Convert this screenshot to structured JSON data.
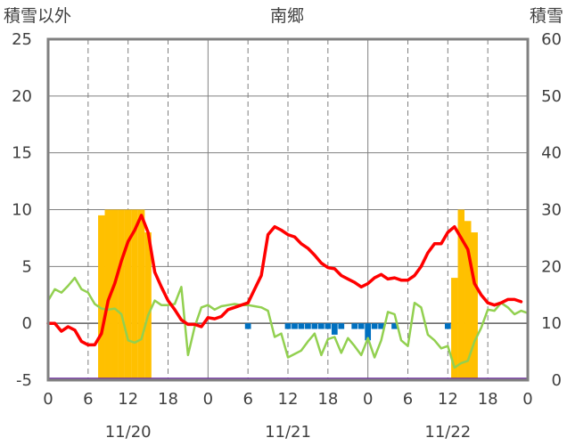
{
  "chart_data": {
    "type": "combo-bar-line",
    "title": "南郷",
    "left_axis_label": "積雪以外",
    "right_axis_label": "積雪",
    "left_ylim": [
      -5,
      25
    ],
    "left_ticks": [
      "-5",
      "0",
      "5",
      "10",
      "15",
      "20",
      "25"
    ],
    "right_ylim": [
      0,
      60
    ],
    "right_ticks": [
      "0",
      "10",
      "20",
      "30",
      "40",
      "50",
      "60"
    ],
    "x_hour_labels": [
      "0",
      "6",
      "12",
      "18",
      "0",
      "6",
      "12",
      "18",
      "0",
      "6",
      "12",
      "18",
      "0"
    ],
    "date_labels": [
      "11/20",
      "11/21",
      "11/22"
    ],
    "x_range_hours": [
      0,
      72
    ],
    "colors": {
      "snow_bar": "#ffc000",
      "precip_bar": "#0070c0",
      "red_line": "#ff0000",
      "green_line": "#92d050",
      "purple_line": "#7030a0",
      "axis": "#808080",
      "grid": "#808080"
    },
    "snow_bars": [
      {
        "hour": 8,
        "value": 29
      },
      {
        "hour": 9,
        "value": 30
      },
      {
        "hour": 10,
        "value": 30
      },
      {
        "hour": 11,
        "value": 30
      },
      {
        "hour": 12,
        "value": 30
      },
      {
        "hour": 13,
        "value": 30
      },
      {
        "hour": 14,
        "value": 30
      },
      {
        "hour": 15,
        "value": 26
      },
      {
        "hour": 61,
        "value": 18
      },
      {
        "hour": 62,
        "value": 30
      },
      {
        "hour": 63,
        "value": 28
      },
      {
        "hour": 64,
        "value": 26
      }
    ],
    "precip_bars": [
      {
        "hour": 30,
        "value": -0.5
      },
      {
        "hour": 36,
        "value": -0.5
      },
      {
        "hour": 37,
        "value": -0.5
      },
      {
        "hour": 38,
        "value": -0.5
      },
      {
        "hour": 39,
        "value": -0.5
      },
      {
        "hour": 40,
        "value": -0.5
      },
      {
        "hour": 41,
        "value": -0.5
      },
      {
        "hour": 42,
        "value": -0.5
      },
      {
        "hour": 43,
        "value": -1.0
      },
      {
        "hour": 44,
        "value": -0.5
      },
      {
        "hour": 46,
        "value": -0.5
      },
      {
        "hour": 47,
        "value": -0.5
      },
      {
        "hour": 48,
        "value": -1.5
      },
      {
        "hour": 49,
        "value": -0.5
      },
      {
        "hour": 50,
        "value": -0.5
      },
      {
        "hour": 52,
        "value": -0.5
      },
      {
        "hour": 60,
        "value": -0.5
      }
    ],
    "red_series": [
      0,
      0,
      -0.7,
      -0.3,
      -0.6,
      -1.6,
      -1.9,
      -1.9,
      -0.9,
      2.0,
      3.5,
      5.5,
      7.2,
      8.2,
      9.5,
      8.0,
      4.5,
      3.2,
      2.0,
      1.2,
      0.3,
      -0.1,
      -0.1,
      -0.3,
      0.5,
      0.4,
      0.6,
      1.2,
      1.4,
      1.6,
      1.8,
      3.0,
      4.2,
      7.8,
      8.5,
      8.2,
      7.8,
      7.6,
      7.0,
      6.6,
      6.0,
      5.3,
      4.9,
      4.8,
      4.2,
      3.9,
      3.6,
      3.2,
      3.5,
      4.0,
      4.3,
      3.9,
      4.0,
      3.8,
      3.8,
      4.2,
      5.0,
      6.2,
      7.0,
      7.0,
      8.0,
      8.5,
      7.5,
      6.5,
      3.5,
      2.5,
      1.8,
      1.6,
      1.8,
      2.1,
      2.1,
      1.9
    ],
    "green_series": [
      2.0,
      3.0,
      2.7,
      3.3,
      4.0,
      3.0,
      2.7,
      1.7,
      1.3,
      1.2,
      1.3,
      0.8,
      -1.5,
      -1.7,
      -1.4,
      0.7,
      2.0,
      1.6,
      1.6,
      1.7,
      3.2,
      -2.8,
      -0.3,
      1.4,
      1.6,
      1.2,
      1.5,
      1.6,
      1.7,
      1.6,
      1.6,
      1.5,
      1.4,
      1.1,
      -1.2,
      -0.9,
      -3.0,
      -2.7,
      -2.4,
      -1.6,
      -0.9,
      -2.8,
      -1.4,
      -1.2,
      -2.6,
      -1.3,
      -2.0,
      -2.8,
      -1.3,
      -3.0,
      -1.5,
      1.0,
      0.8,
      -1.5,
      -2.0,
      1.8,
      1.4,
      -1.0,
      -1.5,
      -2.2,
      -2.0,
      -3.9,
      -3.5,
      -3.3,
      -1.6,
      -0.4,
      1.2,
      1.1,
      1.8,
      1.4,
      0.8,
      1.1,
      0.9
    ],
    "purple_series_value": -4.9
  }
}
